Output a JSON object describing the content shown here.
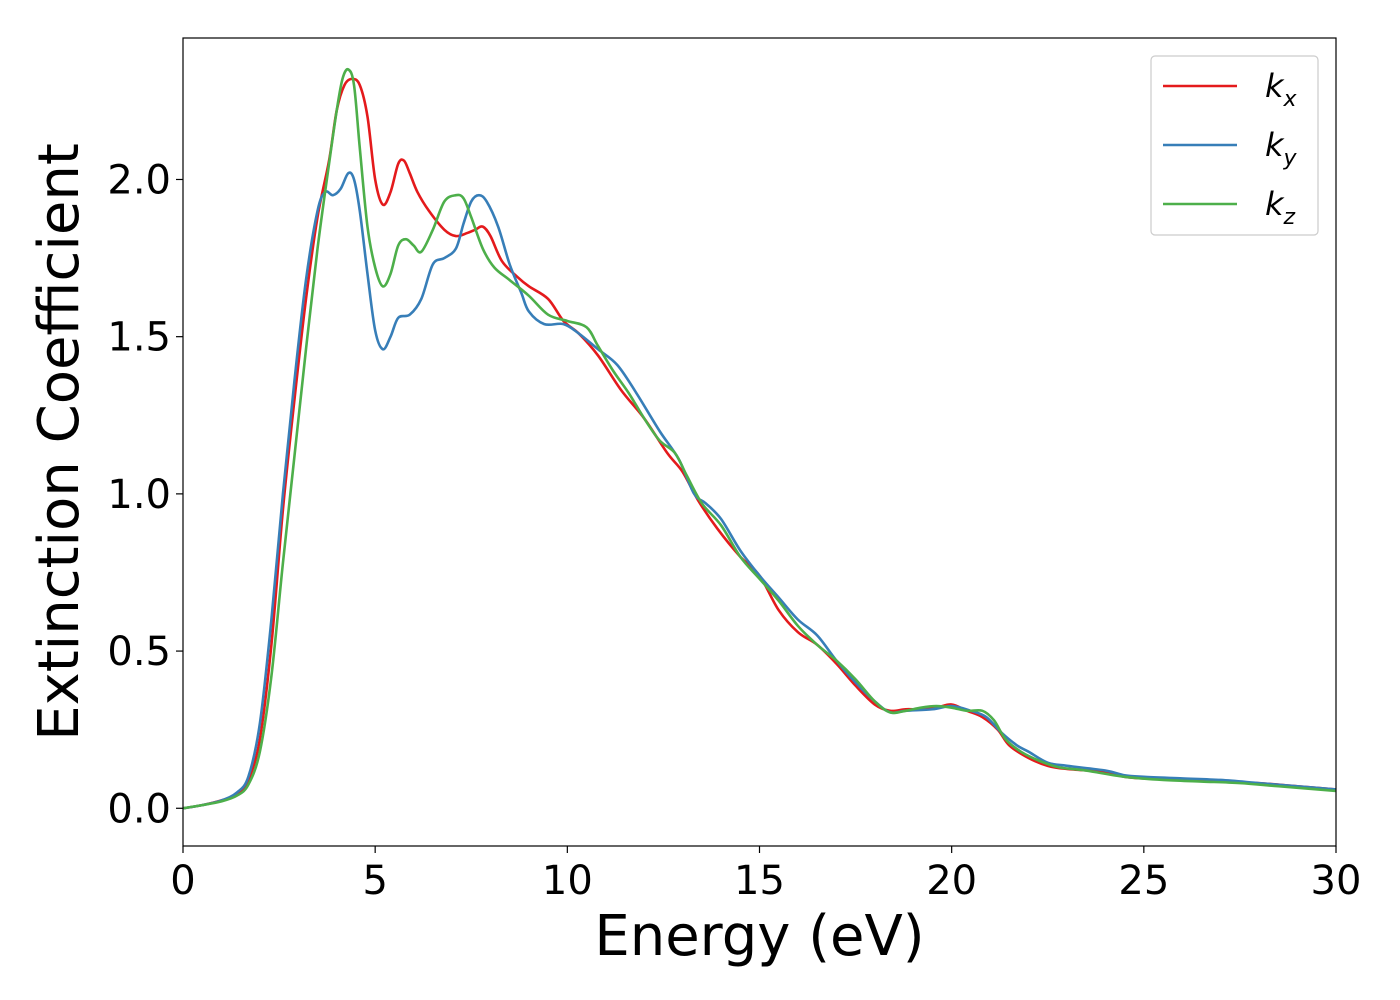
{
  "chart_data": {
    "type": "line",
    "title": "",
    "xlabel": "Energy (eV)",
    "ylabel": "Extinction Coefficient",
    "xlim": [
      0,
      30
    ],
    "ylim": [
      -0.12,
      2.45
    ],
    "xticks": [
      0,
      5,
      10,
      15,
      20,
      25,
      30
    ],
    "xtick_labels": [
      "0",
      "5",
      "10",
      "15",
      "20",
      "25",
      "30"
    ],
    "yticks": [
      0.0,
      0.5,
      1.0,
      1.5,
      2.0
    ],
    "ytick_labels": [
      "0.0",
      "0.5",
      "1.0",
      "1.5",
      "2.0"
    ],
    "grid": false,
    "legend_position": "top-right",
    "series": [
      {
        "name": "k_x",
        "base": "k",
        "sub": "x",
        "color": "#e41a1c",
        "points": [
          [
            0,
            0
          ],
          [
            0.5,
            0.01
          ],
          [
            1.0,
            0.025
          ],
          [
            1.4,
            0.045
          ],
          [
            1.7,
            0.09
          ],
          [
            2.0,
            0.22
          ],
          [
            2.3,
            0.52
          ],
          [
            2.6,
            0.95
          ],
          [
            2.9,
            1.3
          ],
          [
            3.2,
            1.62
          ],
          [
            3.5,
            1.88
          ],
          [
            3.8,
            2.06
          ],
          [
            4.0,
            2.22
          ],
          [
            4.2,
            2.3
          ],
          [
            4.4,
            2.32
          ],
          [
            4.6,
            2.3
          ],
          [
            4.8,
            2.2
          ],
          [
            5.0,
            2.0
          ],
          [
            5.2,
            1.92
          ],
          [
            5.4,
            1.96
          ],
          [
            5.6,
            2.05
          ],
          [
            5.75,
            2.06
          ],
          [
            5.9,
            2.02
          ],
          [
            6.1,
            1.96
          ],
          [
            6.4,
            1.9
          ],
          [
            6.8,
            1.84
          ],
          [
            7.1,
            1.82
          ],
          [
            7.4,
            1.83
          ],
          [
            7.6,
            1.84
          ],
          [
            7.8,
            1.85
          ],
          [
            8.0,
            1.82
          ],
          [
            8.3,
            1.74
          ],
          [
            8.7,
            1.69
          ],
          [
            9.0,
            1.66
          ],
          [
            9.5,
            1.62
          ],
          [
            9.9,
            1.55
          ],
          [
            10.3,
            1.51
          ],
          [
            10.8,
            1.44
          ],
          [
            11.4,
            1.33
          ],
          [
            12.0,
            1.24
          ],
          [
            12.6,
            1.13
          ],
          [
            13.0,
            1.07
          ],
          [
            13.4,
            0.98
          ],
          [
            13.9,
            0.89
          ],
          [
            14.5,
            0.8
          ],
          [
            15.0,
            0.74
          ],
          [
            15.5,
            0.63
          ],
          [
            16.0,
            0.56
          ],
          [
            16.5,
            0.52
          ],
          [
            17.0,
            0.46
          ],
          [
            17.5,
            0.39
          ],
          [
            18.0,
            0.33
          ],
          [
            18.4,
            0.31
          ],
          [
            18.8,
            0.315
          ],
          [
            19.2,
            0.315
          ],
          [
            19.6,
            0.32
          ],
          [
            20.0,
            0.33
          ],
          [
            20.4,
            0.31
          ],
          [
            20.8,
            0.29
          ],
          [
            21.2,
            0.25
          ],
          [
            21.5,
            0.2
          ],
          [
            22.0,
            0.16
          ],
          [
            22.5,
            0.135
          ],
          [
            23.0,
            0.125
          ],
          [
            24.0,
            0.115
          ],
          [
            24.5,
            0.1
          ],
          [
            25.0,
            0.095
          ],
          [
            26.0,
            0.09
          ],
          [
            27.0,
            0.085
          ],
          [
            28.0,
            0.08
          ],
          [
            29.0,
            0.07
          ],
          [
            30.0,
            0.06
          ]
        ]
      },
      {
        "name": "k_y",
        "base": "k",
        "sub": "y",
        "color": "#377eb8",
        "points": [
          [
            0,
            0
          ],
          [
            0.5,
            0.01
          ],
          [
            1.0,
            0.025
          ],
          [
            1.4,
            0.05
          ],
          [
            1.7,
            0.1
          ],
          [
            2.0,
            0.27
          ],
          [
            2.3,
            0.6
          ],
          [
            2.6,
            1.0
          ],
          [
            2.9,
            1.36
          ],
          [
            3.2,
            1.68
          ],
          [
            3.5,
            1.9
          ],
          [
            3.7,
            1.96
          ],
          [
            3.9,
            1.95
          ],
          [
            4.1,
            1.97
          ],
          [
            4.3,
            2.02
          ],
          [
            4.45,
            2.0
          ],
          [
            4.6,
            1.9
          ],
          [
            4.8,
            1.7
          ],
          [
            5.0,
            1.52
          ],
          [
            5.2,
            1.46
          ],
          [
            5.4,
            1.5
          ],
          [
            5.6,
            1.56
          ],
          [
            5.9,
            1.57
          ],
          [
            6.2,
            1.62
          ],
          [
            6.5,
            1.73
          ],
          [
            6.8,
            1.75
          ],
          [
            7.1,
            1.78
          ],
          [
            7.3,
            1.86
          ],
          [
            7.5,
            1.93
          ],
          [
            7.7,
            1.95
          ],
          [
            7.9,
            1.93
          ],
          [
            8.2,
            1.85
          ],
          [
            8.5,
            1.73
          ],
          [
            8.8,
            1.64
          ],
          [
            9.0,
            1.58
          ],
          [
            9.4,
            1.54
          ],
          [
            9.9,
            1.54
          ],
          [
            10.3,
            1.51
          ],
          [
            10.8,
            1.46
          ],
          [
            11.3,
            1.41
          ],
          [
            11.8,
            1.32
          ],
          [
            12.4,
            1.2
          ],
          [
            12.9,
            1.11
          ],
          [
            13.3,
            1.0
          ],
          [
            13.6,
            0.97
          ],
          [
            14.0,
            0.92
          ],
          [
            14.5,
            0.82
          ],
          [
            15.0,
            0.74
          ],
          [
            15.5,
            0.67
          ],
          [
            16.0,
            0.6
          ],
          [
            16.5,
            0.55
          ],
          [
            17.0,
            0.47
          ],
          [
            17.5,
            0.4
          ],
          [
            18.0,
            0.34
          ],
          [
            18.4,
            0.305
          ],
          [
            18.8,
            0.31
          ],
          [
            19.5,
            0.315
          ],
          [
            20.0,
            0.325
          ],
          [
            20.5,
            0.31
          ],
          [
            20.9,
            0.29
          ],
          [
            21.3,
            0.24
          ],
          [
            21.7,
            0.2
          ],
          [
            22.0,
            0.18
          ],
          [
            22.5,
            0.145
          ],
          [
            23.0,
            0.135
          ],
          [
            24.0,
            0.12
          ],
          [
            24.5,
            0.105
          ],
          [
            25.0,
            0.1
          ],
          [
            26.0,
            0.095
          ],
          [
            27.0,
            0.09
          ],
          [
            28.0,
            0.08
          ],
          [
            29.0,
            0.07
          ],
          [
            30.0,
            0.06
          ]
        ]
      },
      {
        "name": "k_z",
        "base": "k",
        "sub": "z",
        "color": "#4daf4a",
        "points": [
          [
            0,
            0
          ],
          [
            0.5,
            0.01
          ],
          [
            1.0,
            0.022
          ],
          [
            1.4,
            0.04
          ],
          [
            1.7,
            0.075
          ],
          [
            2.0,
            0.18
          ],
          [
            2.3,
            0.42
          ],
          [
            2.6,
            0.78
          ],
          [
            2.9,
            1.12
          ],
          [
            3.2,
            1.46
          ],
          [
            3.5,
            1.78
          ],
          [
            3.8,
            2.05
          ],
          [
            4.0,
            2.22
          ],
          [
            4.15,
            2.32
          ],
          [
            4.3,
            2.35
          ],
          [
            4.45,
            2.3
          ],
          [
            4.6,
            2.1
          ],
          [
            4.8,
            1.85
          ],
          [
            5.0,
            1.72
          ],
          [
            5.2,
            1.66
          ],
          [
            5.4,
            1.7
          ],
          [
            5.6,
            1.79
          ],
          [
            5.8,
            1.81
          ],
          [
            6.0,
            1.79
          ],
          [
            6.2,
            1.77
          ],
          [
            6.5,
            1.84
          ],
          [
            6.8,
            1.93
          ],
          [
            7.1,
            1.95
          ],
          [
            7.3,
            1.94
          ],
          [
            7.5,
            1.88
          ],
          [
            7.8,
            1.78
          ],
          [
            8.1,
            1.72
          ],
          [
            8.5,
            1.68
          ],
          [
            9.0,
            1.63
          ],
          [
            9.5,
            1.57
          ],
          [
            10.0,
            1.55
          ],
          [
            10.5,
            1.53
          ],
          [
            10.8,
            1.47
          ],
          [
            11.2,
            1.39
          ],
          [
            11.6,
            1.32
          ],
          [
            12.0,
            1.24
          ],
          [
            12.4,
            1.17
          ],
          [
            12.8,
            1.13
          ],
          [
            13.1,
            1.06
          ],
          [
            13.5,
            0.97
          ],
          [
            14.0,
            0.9
          ],
          [
            14.5,
            0.8
          ],
          [
            15.0,
            0.73
          ],
          [
            15.5,
            0.66
          ],
          [
            16.0,
            0.58
          ],
          [
            16.5,
            0.52
          ],
          [
            17.0,
            0.47
          ],
          [
            17.5,
            0.41
          ],
          [
            18.0,
            0.34
          ],
          [
            18.4,
            0.305
          ],
          [
            18.8,
            0.31
          ],
          [
            19.2,
            0.32
          ],
          [
            19.6,
            0.325
          ],
          [
            20.0,
            0.32
          ],
          [
            20.4,
            0.31
          ],
          [
            20.8,
            0.31
          ],
          [
            21.1,
            0.28
          ],
          [
            21.4,
            0.22
          ],
          [
            21.8,
            0.18
          ],
          [
            22.3,
            0.15
          ],
          [
            22.8,
            0.13
          ],
          [
            23.5,
            0.12
          ],
          [
            24.5,
            0.1
          ],
          [
            25.5,
            0.09
          ],
          [
            26.5,
            0.085
          ],
          [
            27.5,
            0.08
          ],
          [
            28.5,
            0.07
          ],
          [
            30.0,
            0.055
          ]
        ]
      }
    ]
  }
}
